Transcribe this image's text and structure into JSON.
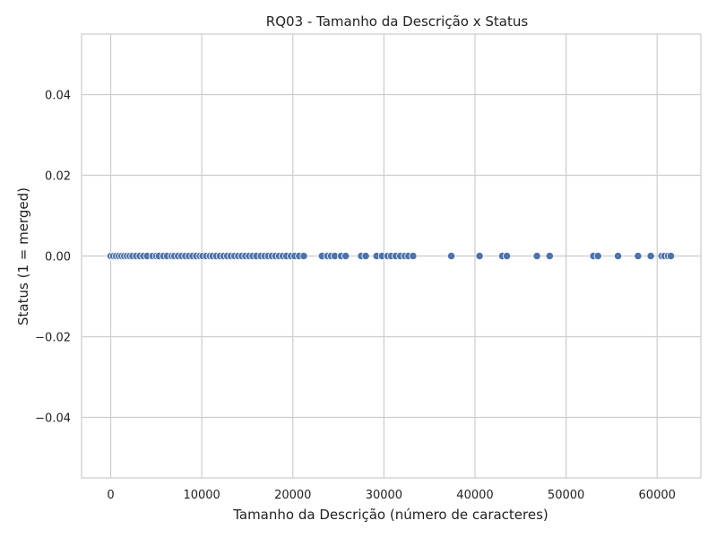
{
  "chart_data": {
    "type": "scatter",
    "title": "RQ03 - Tamanho da Descrição x Status",
    "xlabel": "Tamanho da Descrição (número de caracteres)",
    "ylabel": "Status (1 = merged)",
    "xlim": [
      -3200,
      64800
    ],
    "ylim": [
      -0.055,
      0.055
    ],
    "x_ticks": [
      0,
      10000,
      20000,
      30000,
      40000,
      50000,
      60000
    ],
    "x_tick_labels": [
      "0",
      "10000",
      "20000",
      "30000",
      "40000",
      "50000",
      "60000"
    ],
    "y_ticks": [
      0.04,
      0.02,
      0.0,
      -0.02,
      -0.04
    ],
    "y_tick_labels": [
      "0.04",
      "0.02",
      "0.00",
      "−0.02",
      "−0.04"
    ],
    "grid": true,
    "colors": {
      "marker": "#4c72b0",
      "grid": "#cccccc",
      "background": "#ffffff"
    },
    "series": [
      {
        "x": [
          0,
          300,
          600,
          900,
          1200,
          1500,
          1800,
          2100,
          2400,
          2800,
          3200,
          3600,
          4000,
          4600,
          5000,
          5300,
          5800,
          6200,
          6700,
          7000,
          7400,
          7800,
          8200,
          8600,
          9000,
          9400,
          9800,
          10100,
          10500,
          10900,
          11200,
          11600,
          12000,
          12400,
          12800,
          13200,
          13600,
          14000,
          14400,
          14800,
          15200,
          15600,
          16000,
          16500,
          16900,
          17300,
          17700,
          18100,
          18500,
          18900,
          19300,
          19800,
          20200,
          20700,
          21200,
          23200,
          23800,
          24200,
          24600,
          25300,
          25800,
          27500,
          28000,
          29200,
          29800,
          30400,
          30800,
          31300,
          31800,
          32300,
          32700,
          33200,
          37400,
          40500,
          43000,
          43500,
          46800,
          48200,
          53000,
          53500,
          55700,
          57900,
          59300,
          60500,
          60800,
          61200,
          61500
        ],
        "y": [
          0,
          0,
          0,
          0,
          0,
          0,
          0,
          0,
          0,
          0,
          0,
          0,
          0,
          0,
          0,
          0,
          0,
          0,
          0,
          0,
          0,
          0,
          0,
          0,
          0,
          0,
          0,
          0,
          0,
          0,
          0,
          0,
          0,
          0,
          0,
          0,
          0,
          0,
          0,
          0,
          0,
          0,
          0,
          0,
          0,
          0,
          0,
          0,
          0,
          0,
          0,
          0,
          0,
          0,
          0,
          0,
          0,
          0,
          0,
          0,
          0,
          0,
          0,
          0,
          0,
          0,
          0,
          0,
          0,
          0,
          0,
          0,
          0,
          0,
          0,
          0,
          0,
          0,
          0,
          0,
          0,
          0,
          0,
          0,
          0,
          0,
          0
        ]
      }
    ]
  }
}
